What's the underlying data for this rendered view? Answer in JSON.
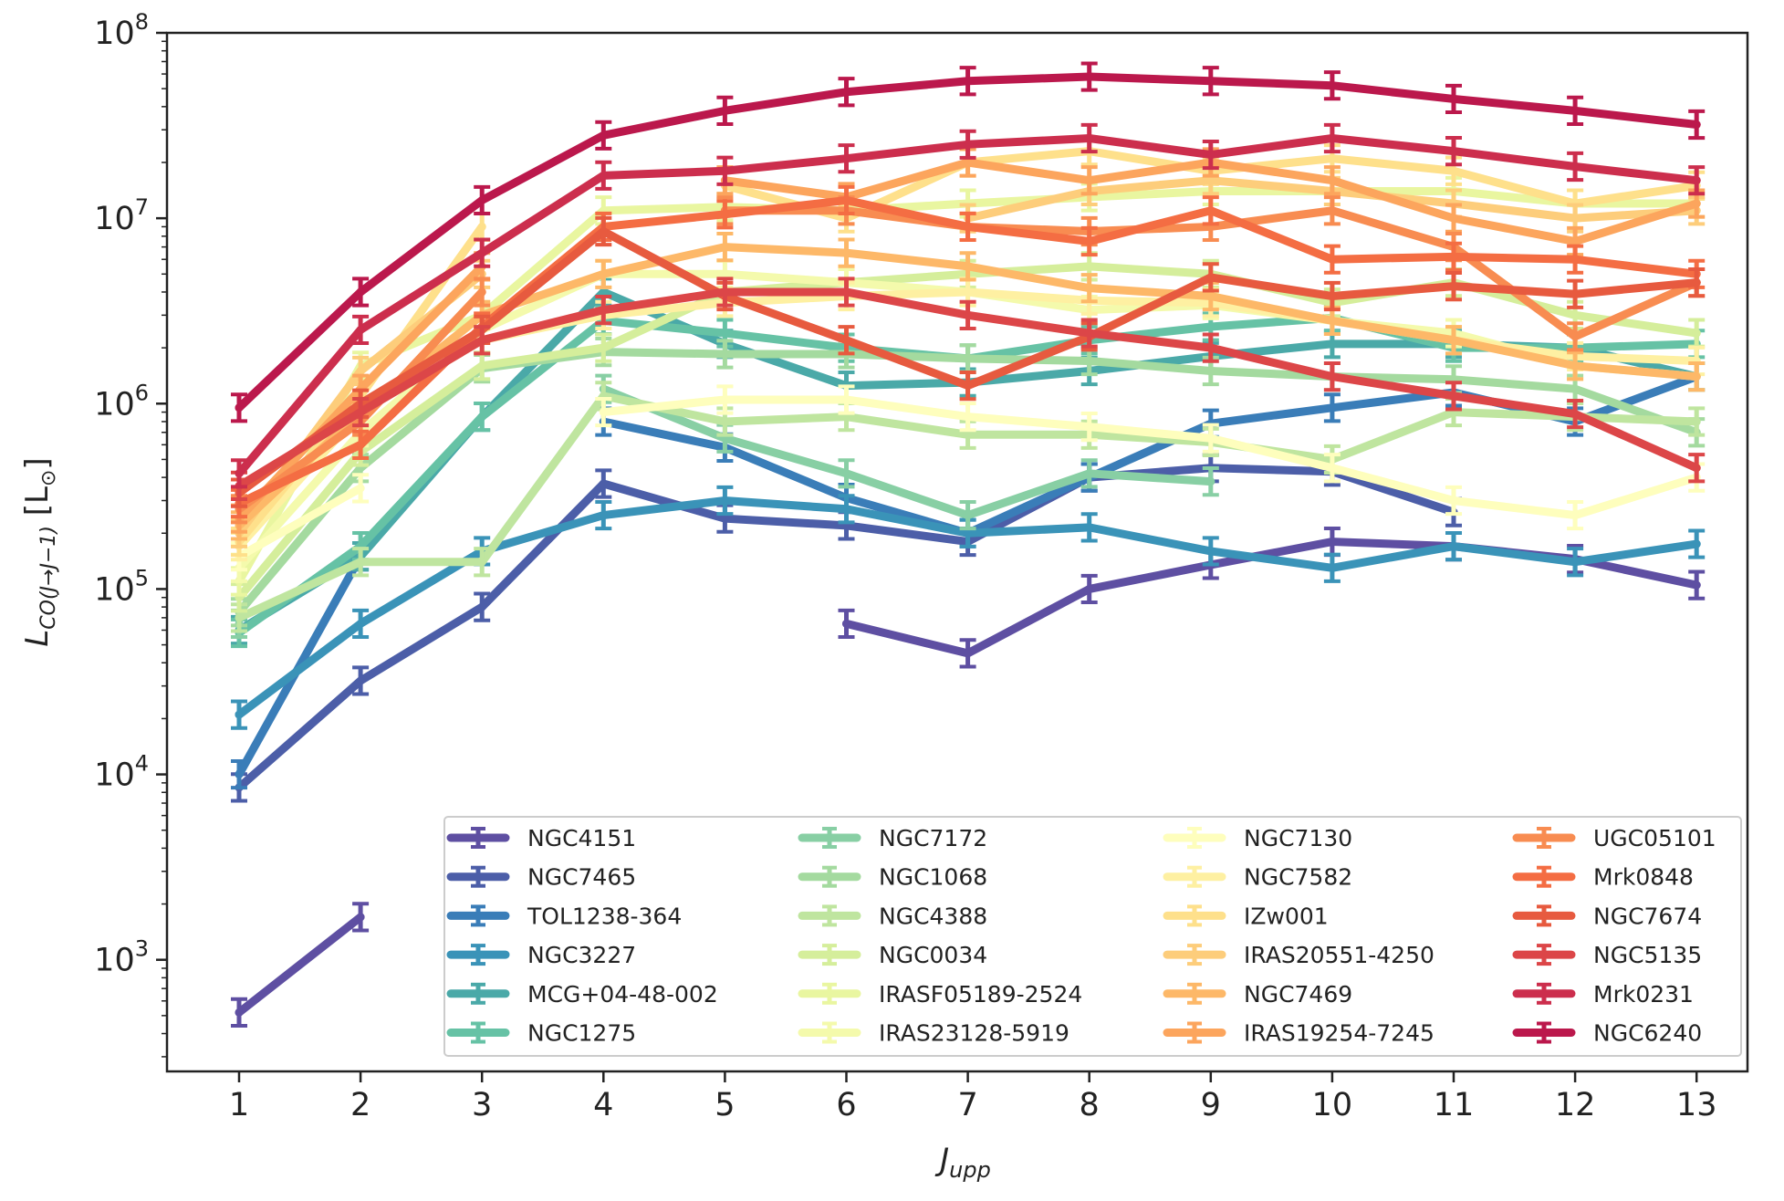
{
  "chart_data": {
    "type": "line",
    "title": "",
    "xlabel": "J_upp",
    "ylabel": "L_CO(J→J−1) [L_⊙]",
    "yscale": "log",
    "ylim": [
      250,
      100000000
    ],
    "x": [
      1,
      2,
      3,
      4,
      5,
      6,
      7,
      8,
      9,
      10,
      11,
      12,
      13
    ],
    "x_tick_labels": [
      "1",
      "2",
      "3",
      "4",
      "5",
      "6",
      "7",
      "8",
      "9",
      "10",
      "11",
      "12",
      "13"
    ],
    "y_ticks": [
      {
        "value": 1000,
        "mant": "10",
        "exp": "3"
      },
      {
        "value": 10000,
        "mant": "10",
        "exp": "4"
      },
      {
        "value": 100000,
        "mant": "10",
        "exp": "5"
      },
      {
        "value": 1000000,
        "mant": "10",
        "exp": "6"
      },
      {
        "value": 10000000,
        "mant": "10",
        "exp": "7"
      },
      {
        "value": 100000000,
        "mant": "10",
        "exp": "8"
      }
    ],
    "legend_position": "lower-right",
    "series": [
      {
        "name": "NGC4151",
        "color": "#5e4fa2",
        "values": [
          520,
          1700,
          null,
          null,
          null,
          65000,
          45000,
          100000,
          135000,
          180000,
          170000,
          145000,
          105000
        ]
      },
      {
        "name": "NGC7465",
        "color": "#4c5ea8",
        "values": [
          8500,
          32000,
          80000,
          370000,
          240000,
          220000,
          180000,
          400000,
          450000,
          430000,
          260000,
          null,
          null
        ]
      },
      {
        "name": "TOL1238-364",
        "color": "#3a7db8",
        "values": [
          10000,
          150000,
          null,
          800000,
          580000,
          310000,
          200000,
          400000,
          780000,
          950000,
          1150000,
          800000,
          1400000
        ]
      },
      {
        "name": "NGC3227",
        "color": "#3a93b8",
        "values": [
          21000,
          65000,
          160000,
          250000,
          300000,
          270000,
          200000,
          215000,
          160000,
          130000,
          170000,
          140000,
          175000
        ]
      },
      {
        "name": "MCG+04-48-002",
        "color": "#4aa9a8",
        "values": [
          60000,
          150000,
          850000,
          4000000,
          2100000,
          1250000,
          1300000,
          1500000,
          1800000,
          2100000,
          2100000,
          2000000,
          1400000
        ]
      },
      {
        "name": "NGC1275",
        "color": "#66c2a5",
        "values": [
          58000,
          170000,
          850000,
          2800000,
          2400000,
          2000000,
          1750000,
          2200000,
          2600000,
          2900000,
          2000000,
          2000000,
          2100000
        ]
      },
      {
        "name": "NGC7172",
        "color": "#88cfa4",
        "values": [
          65000,
          null,
          null,
          1200000,
          650000,
          420000,
          250000,
          420000,
          380000,
          null,
          null,
          null,
          null
        ]
      },
      {
        "name": "NGC1068",
        "color": "#a4da9f",
        "values": [
          75000,
          450000,
          1550000,
          1900000,
          1850000,
          1850000,
          1750000,
          1700000,
          1500000,
          1400000,
          1350000,
          1200000,
          700000
        ]
      },
      {
        "name": "NGC4388",
        "color": "#bfe59f",
        "values": [
          70000,
          140000,
          140000,
          1100000,
          800000,
          850000,
          680000,
          680000,
          620000,
          500000,
          900000,
          850000,
          800000
        ]
      },
      {
        "name": "NGC0034",
        "color": "#d5ee9b",
        "values": [
          90000,
          550000,
          1600000,
          2000000,
          4000000,
          4500000,
          5000000,
          5500000,
          5000000,
          3500000,
          4500000,
          3000000,
          2400000
        ]
      },
      {
        "name": "IRASF05189-2524",
        "color": "#e9f6a0",
        "values": [
          110000,
          1600000,
          3000000,
          11000000,
          11500000,
          11000000,
          12000000,
          13000000,
          14000000,
          14000000,
          14000000,
          12000000,
          12000000
        ]
      },
      {
        "name": "IRAS23128-5919",
        "color": "#f4faac",
        "values": [
          130000,
          700000,
          2500000,
          5000000,
          5000000,
          4500000,
          4000000,
          3200000,
          3400000,
          2800000,
          2400000,
          1600000,
          1400000
        ]
      },
      {
        "name": "NGC7130",
        "color": "#fefebd",
        "values": [
          150000,
          350000,
          null,
          900000,
          1050000,
          1050000,
          850000,
          750000,
          650000,
          450000,
          300000,
          250000,
          400000
        ]
      },
      {
        "name": "NGC7582",
        "color": "#fef0a2",
        "values": [
          170000,
          900000,
          2200000,
          3000000,
          3500000,
          3800000,
          4000000,
          3600000,
          3500000,
          2800000,
          2200000,
          1800000,
          1700000
        ]
      },
      {
        "name": "IZw001",
        "color": "#fee08b",
        "values": [
          180000,
          1100000,
          9000000,
          null,
          15000000,
          10000000,
          20000000,
          23000000,
          18000000,
          21000000,
          18000000,
          12000000,
          15000000
        ]
      },
      {
        "name": "IRAS20551-4250",
        "color": "#fdcd7b",
        "values": [
          200000,
          1500000,
          5000000,
          null,
          null,
          null,
          10000000,
          14000000,
          16000000,
          14000000,
          12000000,
          10000000,
          11000000
        ]
      },
      {
        "name": "NGC7469",
        "color": "#fdb868",
        "values": [
          220000,
          900000,
          3000000,
          5000000,
          7000000,
          6500000,
          5500000,
          4200000,
          3800000,
          2800000,
          2200000,
          1600000,
          1400000
        ]
      },
      {
        "name": "IRAS19254-7245",
        "color": "#fca55d",
        "values": [
          240000,
          1200000,
          5500000,
          null,
          16000000,
          13000000,
          20000000,
          16000000,
          20000000,
          16000000,
          10000000,
          7500000,
          12000000
        ]
      },
      {
        "name": "UGC05101",
        "color": "#f88c51",
        "values": [
          270000,
          800000,
          4000000,
          null,
          11000000,
          11000000,
          9000000,
          8500000,
          9000000,
          11000000,
          7000000,
          2300000,
          4500000
        ]
      },
      {
        "name": "Mrk0848",
        "color": "#f46d43",
        "values": [
          290000,
          600000,
          2600000,
          9000000,
          10500000,
          12500000,
          9000000,
          7500000,
          11000000,
          6000000,
          6200000,
          6000000,
          5000000
        ]
      },
      {
        "name": "NGC7674",
        "color": "#e75a3f",
        "values": [
          330000,
          1000000,
          2500000,
          8500000,
          3800000,
          2200000,
          1250000,
          2300000,
          4800000,
          3800000,
          4300000,
          3900000,
          4500000
        ]
      },
      {
        "name": "NGC5135",
        "color": "#dc4648",
        "values": [
          360000,
          900000,
          2200000,
          3200000,
          4000000,
          4000000,
          3000000,
          2400000,
          2000000,
          1400000,
          1100000,
          880000,
          450000
        ]
      },
      {
        "name": "Mrk0231",
        "color": "#cc2e4d",
        "values": [
          420000,
          2500000,
          6500000,
          17000000,
          18000000,
          21000000,
          25000000,
          27000000,
          22000000,
          27000000,
          23000000,
          19000000,
          16000000
        ]
      },
      {
        "name": "NGC6240",
        "color": "#bb184c",
        "values": [
          950000,
          4000000,
          12500000,
          28000000,
          38000000,
          48000000,
          55000000,
          58000000,
          55000000,
          52000000,
          44000000,
          38000000,
          32000000
        ]
      }
    ]
  }
}
